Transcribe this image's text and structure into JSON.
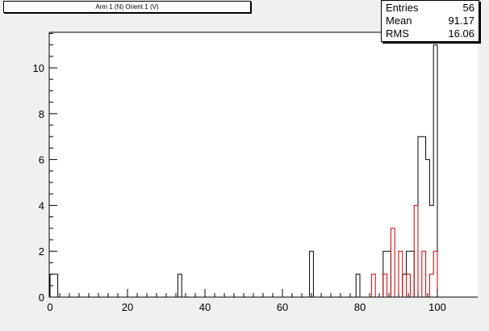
{
  "title": "Arm 1 (N) Orient 1 (V)",
  "stats": {
    "entries_label": "Entries",
    "entries_value": "56",
    "mean_label": "Mean",
    "mean_value": "91.17",
    "rms_label": "RMS",
    "rms_value": "16.06"
  },
  "chart_data": {
    "type": "bar",
    "xlim": [
      0,
      100
    ],
    "ylim": [
      0,
      11.55
    ],
    "bin_width": 1,
    "x_ticks": [
      0,
      20,
      40,
      60,
      80,
      100
    ],
    "y_ticks": [
      0,
      2,
      4,
      6,
      8,
      10
    ],
    "grid": false,
    "series": [
      {
        "color": "#000000",
        "bins": [
          {
            "x": 0,
            "value": 1
          },
          {
            "x": 1,
            "value": 1
          },
          {
            "x": 33,
            "value": 1
          },
          {
            "x": 67,
            "value": 2
          },
          {
            "x": 79,
            "value": 1
          },
          {
            "x": 86,
            "value": 2
          },
          {
            "x": 87,
            "value": 2
          },
          {
            "x": 91,
            "value": 1
          },
          {
            "x": 92,
            "value": 2
          },
          {
            "x": 93,
            "value": 2
          },
          {
            "x": 95,
            "value": 7
          },
          {
            "x": 96,
            "value": 7
          },
          {
            "x": 97,
            "value": 6
          },
          {
            "x": 98,
            "value": 4
          },
          {
            "x": 99,
            "value": 11
          }
        ]
      },
      {
        "color": "#cc0000",
        "bins": [
          {
            "x": 83,
            "value": 1
          },
          {
            "x": 86,
            "value": 1
          },
          {
            "x": 88,
            "value": 3
          },
          {
            "x": 90,
            "value": 2
          },
          {
            "x": 92,
            "value": 1
          },
          {
            "x": 94,
            "value": 4
          },
          {
            "x": 96,
            "value": 2
          },
          {
            "x": 98,
            "value": 1
          },
          {
            "x": 99,
            "value": 2
          }
        ]
      }
    ]
  }
}
